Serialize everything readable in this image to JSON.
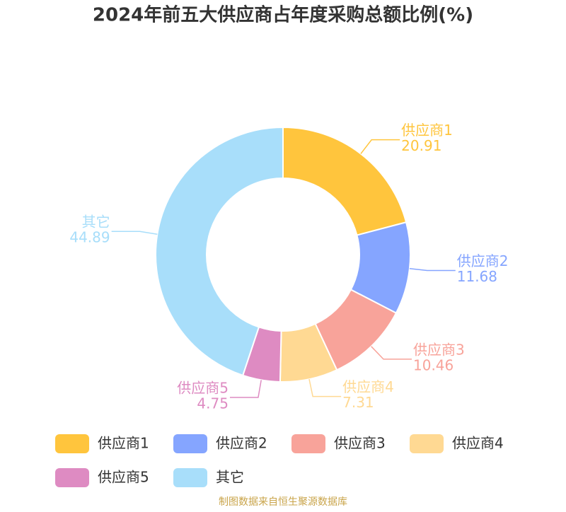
{
  "chart_data": {
    "type": "donut",
    "title": "2024年前五大供应商占年度采购总额比例(%)",
    "categories": [
      "供应商1",
      "供应商2",
      "供应商3",
      "供应商4",
      "供应商5",
      "其它"
    ],
    "values": [
      20.91,
      11.68,
      10.46,
      7.31,
      4.75,
      44.89
    ],
    "colors": [
      "#ffc53d",
      "#85a5ff",
      "#f8a39a",
      "#ffd993",
      "#de8bc2",
      "#a8defa"
    ],
    "legend": "bottom",
    "source": "制图数据来自恒生聚源数据库"
  }
}
